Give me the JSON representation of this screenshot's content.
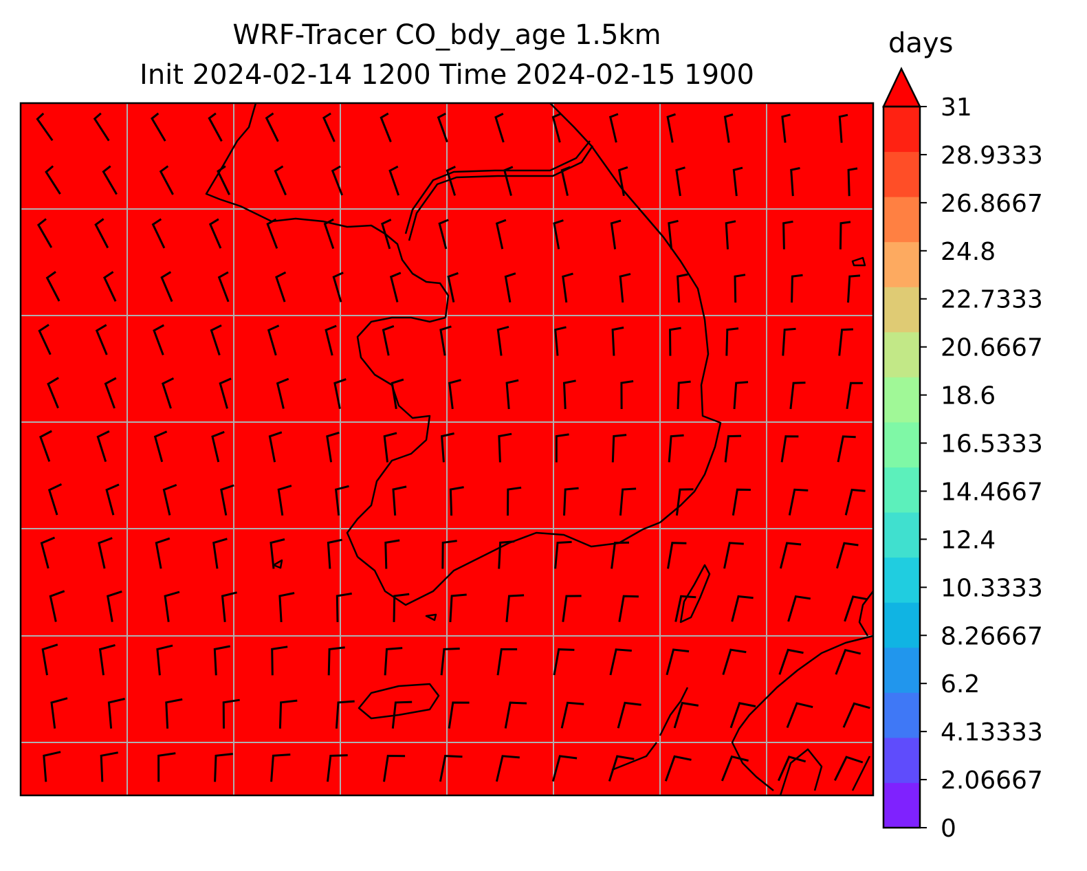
{
  "title": {
    "line1": "WRF-Tracer CO_bdy_age 1.5km",
    "line2": "Init 2024-02-14 1200 Time 2024-02-15 1900"
  },
  "colorbar": {
    "unit": "days",
    "ticks": [
      "0",
      "2.06667",
      "4.13333",
      "6.2",
      "8.26667",
      "10.3333",
      "12.4",
      "14.4667",
      "16.5333",
      "18.6",
      "20.6667",
      "22.7333",
      "24.8",
      "26.8667",
      "28.9333",
      "31"
    ],
    "colors": [
      "#7f22fe",
      "#5f4cfc",
      "#3f78f6",
      "#2196ed",
      "#10b4e3",
      "#20cde0",
      "#40e0cf",
      "#5cf0bb",
      "#7ff8a6",
      "#a0f897",
      "#c2e887",
      "#dfcb74",
      "#fdaa60",
      "#ff8042",
      "#ff4e27",
      "#ff2212"
    ],
    "extend_max_color": "#ff0000"
  },
  "map": {
    "field_value_days": 31,
    "field_color": "#ff0000",
    "grid_color": "#b0b0b0",
    "coast_color": "#000000",
    "wind_barb_color": "#000000"
  }
}
